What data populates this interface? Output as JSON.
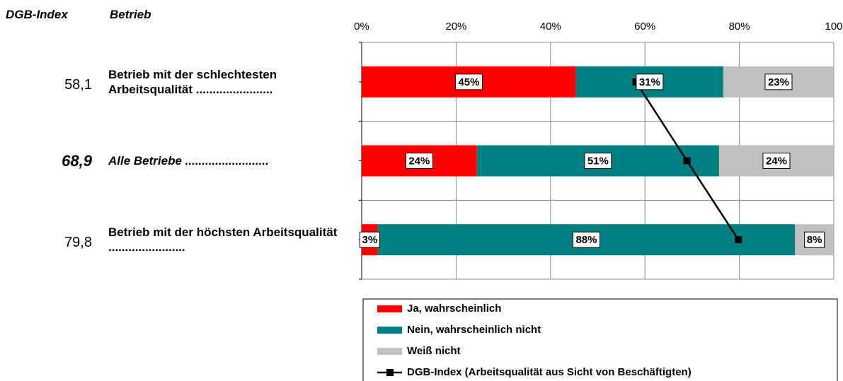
{
  "chart_data": {
    "type": "bar",
    "orientation": "horizontal",
    "stacked": true,
    "header": {
      "index": "DGB-Index",
      "category": "Betrieb"
    },
    "categories": [
      "Betrieb mit der schlechtesten Arbeitsqualität .......................",
      "Alle Betriebe .........................",
      "Betrieb mit der höchsten Arbeitsqualität ......................."
    ],
    "series": [
      {
        "name": "Ja, wahrscheinlich",
        "color": "#ff0000",
        "values": [
          45.4,
          24.4,
          3.4
        ],
        "value_labels": [
          "45%",
          "24%",
          "3%"
        ]
      },
      {
        "name": "Nein, wahrscheinlich nicht",
        "color": "#008080",
        "values": [
          31.2,
          51.3,
          88.4
        ],
        "value_labels": [
          "31%",
          "51%",
          "88%"
        ]
      },
      {
        "name": "Weiß nicht",
        "color": "#c0c0c0",
        "values": [
          23.4,
          24.3,
          8.2
        ],
        "value_labels": [
          "23%",
          "24%",
          "8%"
        ]
      }
    ],
    "line": {
      "name": "DGB-Index (Arbeitsqualität aus Sicht von Beschäftigten)",
      "color": "#000000",
      "values": [
        58.1,
        68.9,
        79.8
      ],
      "value_labels": [
        "58,1",
        "68,9",
        "79,8"
      ]
    },
    "xlim": [
      0,
      100
    ],
    "xticks": [
      {
        "value": 0,
        "label": "0%"
      },
      {
        "value": 20,
        "label": "20%"
      },
      {
        "value": 40,
        "label": "40%"
      },
      {
        "value": 60,
        "label": "60%"
      },
      {
        "value": 80,
        "label": "80%"
      },
      100
    ],
    "grid": true
  }
}
